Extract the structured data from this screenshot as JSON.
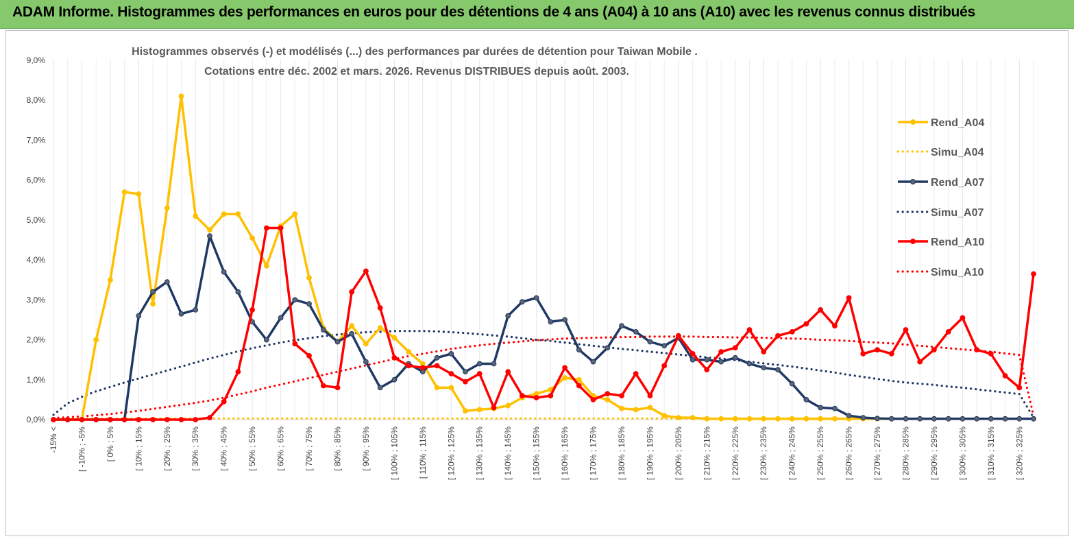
{
  "header": {
    "title": "ADAM Informe. Histogrammes des performances en euros pour des détentions de 4 ans (A04) à 10 ans (A10) avec les revenus connus distribués"
  },
  "chart_data": {
    "type": "line",
    "title_line1": "Histogrammes observés (-) et modélisés (...) des performances par durées de détention pour Taiwan Mobile .",
    "title_line2": "Cotations entre déc. 2002 et mars. 2026. Revenus DISTRIBUES depuis août. 2003.",
    "ylim": [
      0,
      9
    ],
    "yticks": [
      "0,0%",
      "1,0%",
      "2,0%",
      "3,0%",
      "4,0%",
      "5,0%",
      "6,0%",
      "7,0%",
      "8,0%",
      "9,0%"
    ],
    "legend_position": "right",
    "x_labels": [
      "-15% <",
      "[ -10% ; -5%",
      "[ 0% ; 5%",
      "[ 10% ; 15%",
      "[ 20% ; 25%",
      "[ 30% ; 35%",
      "[ 40% ; 45%",
      "[ 50% ; 55%",
      "[ 60% ; 65%",
      "[ 70% ; 75%",
      "[ 80% ; 85%",
      "[ 90% ; 95%",
      "[ 100% ; 105%",
      "[ 110% ; 115%",
      "[ 120% ; 125%",
      "[ 130% ; 135%",
      "[ 140% ; 145%",
      "[ 150% ; 155%",
      "[ 160% ; 165%",
      "[ 170% ; 175%",
      "[ 180% ; 185%",
      "[ 190% ; 195%",
      "[ 200% ; 205%",
      "[ 210% ; 215%",
      "[ 220% ; 225%",
      "[ 230% ; 235%",
      "[ 240% ; 245%",
      "[ 250% ; 255%",
      "[ 260% ; 265%",
      "[ 270% ; 275%",
      "[ 280% ; 285%",
      "[ 290% ; 295%",
      "[ 300% ; 305%",
      "[ 310% ; 315%",
      "[ 320% ; 325%"
    ],
    "series": [
      {
        "name": "Rend_A04",
        "style": "solid",
        "color": "#ffc000",
        "values": [
          0,
          0,
          0,
          2,
          3.5,
          5.7,
          5.65,
          2.9,
          5.3,
          8.1,
          5.1,
          4.75,
          5.15,
          5.15,
          4.55,
          3.85,
          4.85,
          5.15,
          3.55,
          2.3,
          1.95,
          2.35,
          1.9,
          2.3,
          2.05,
          1.7,
          1.4,
          0.8,
          0.8,
          0.22,
          0.25,
          0.28,
          0.35,
          0.55,
          0.65,
          0.75,
          1.05,
          1.0,
          0.6,
          0.5,
          0.28,
          0.25,
          0.3,
          0.1,
          0.05,
          0.05,
          0.02,
          0.02,
          0.02,
          0.02,
          0.02,
          0.02,
          0.02,
          0.02,
          0.02,
          0.02,
          0.02,
          0.02,
          0.02,
          0.02,
          0.02,
          0.02,
          0.02,
          0.02,
          0.02,
          0.02,
          0.02,
          0.02,
          0.02,
          0.02
        ]
      },
      {
        "name": "Simu_A04",
        "style": "dotted",
        "color": "#ffc000",
        "values": [
          0.03,
          0.03,
          0.03,
          0.03,
          0.03,
          0.03,
          0.03,
          0.03,
          0.03,
          0.03,
          0.03,
          0.03,
          0.03,
          0.03,
          0.03,
          0.03,
          0.03,
          0.03,
          0.03,
          0.03,
          0.03,
          0.03,
          0.03,
          0.03,
          0.03,
          0.03,
          0.03,
          0.03,
          0.03,
          0.03,
          0.03,
          0.03,
          0.03,
          0.03,
          0.03,
          0.03,
          0.03,
          0.03,
          0.03,
          0.03,
          0.03,
          0.03,
          0.03,
          0.03,
          0.03,
          0.03,
          0.03,
          0.03,
          0.03,
          0.03,
          0.03,
          0.03,
          0.03,
          0.03,
          0.03,
          0.03,
          0.03,
          0.03,
          0.03,
          0.03,
          0.03,
          0.03,
          0.03,
          0.03,
          0.03,
          0.03,
          0.03,
          0.03,
          0.03,
          0.03
        ]
      },
      {
        "name": "Rend_A07",
        "style": "solid",
        "color": "#1f3864",
        "values": [
          0,
          0,
          0,
          0,
          0,
          0,
          2.6,
          3.2,
          3.45,
          2.65,
          2.75,
          4.6,
          3.7,
          3.2,
          2.45,
          2.0,
          2.55,
          3.0,
          2.9,
          2.25,
          1.95,
          2.15,
          1.45,
          0.8,
          1.0,
          1.4,
          1.2,
          1.55,
          1.65,
          1.2,
          1.4,
          1.4,
          2.6,
          2.95,
          3.05,
          2.45,
          2.5,
          1.75,
          1.45,
          1.8,
          2.35,
          2.2,
          1.95,
          1.85,
          2.05,
          1.5,
          1.5,
          1.45,
          1.55,
          1.4,
          1.3,
          1.25,
          0.9,
          0.5,
          0.3,
          0.28,
          0.1,
          0.05,
          0.03,
          0.02,
          0.02,
          0.02,
          0.02,
          0.02,
          0.02,
          0.02,
          0.02,
          0.02,
          0.02,
          0.02
        ]
      },
      {
        "name": "Simu_A07",
        "style": "dotted",
        "color": "#1f3864",
        "values": [
          0.12,
          0.41,
          0.57,
          0.71,
          0.82,
          0.93,
          1.03,
          1.13,
          1.23,
          1.33,
          1.43,
          1.53,
          1.62,
          1.71,
          1.79,
          1.86,
          1.93,
          1.99,
          2.04,
          2.09,
          2.13,
          2.16,
          2.19,
          2.2,
          2.22,
          2.22,
          2.22,
          2.21,
          2.19,
          2.17,
          2.14,
          2.11,
          2.08,
          2.04,
          2.0,
          1.97,
          1.93,
          1.89,
          1.85,
          1.81,
          1.77,
          1.74,
          1.7,
          1.67,
          1.63,
          1.6,
          1.56,
          1.53,
          1.49,
          1.45,
          1.41,
          1.37,
          1.33,
          1.28,
          1.23,
          1.18,
          1.12,
          1.07,
          1.02,
          0.97,
          0.93,
          0.9,
          0.87,
          0.83,
          0.8,
          0.76,
          0.72,
          0.68,
          0.64,
          0.05
        ]
      },
      {
        "name": "Rend_A10",
        "style": "solid",
        "color": "#ff0000",
        "values": [
          0,
          0,
          0,
          0,
          0,
          0,
          0,
          0,
          0,
          0,
          0,
          0.05,
          0.45,
          1.2,
          2.75,
          4.8,
          4.8,
          1.9,
          1.6,
          0.85,
          0.8,
          3.2,
          3.72,
          2.8,
          1.55,
          1.35,
          1.3,
          1.35,
          1.15,
          0.95,
          1.15,
          0.3,
          1.2,
          0.6,
          0.55,
          0.6,
          1.3,
          0.85,
          0.5,
          0.65,
          0.6,
          1.15,
          0.6,
          1.35,
          2.1,
          1.65,
          1.25,
          1.7,
          1.8,
          2.25,
          1.7,
          2.1,
          2.2,
          2.4,
          2.75,
          2.35,
          3.05,
          1.65,
          1.75,
          1.65,
          2.25,
          1.45,
          1.75,
          2.2,
          2.55,
          1.75,
          1.65,
          1.1,
          0.8,
          3.65
        ]
      },
      {
        "name": "Simu_A10",
        "style": "dotted",
        "color": "#ff0000",
        "values": [
          0.04,
          0.06,
          0.08,
          0.11,
          0.14,
          0.18,
          0.22,
          0.27,
          0.32,
          0.37,
          0.42,
          0.48,
          0.55,
          0.63,
          0.71,
          0.8,
          0.88,
          0.96,
          1.04,
          1.12,
          1.2,
          1.28,
          1.36,
          1.44,
          1.52,
          1.59,
          1.65,
          1.71,
          1.77,
          1.82,
          1.86,
          1.9,
          1.93,
          1.96,
          1.99,
          2.01,
          2.03,
          2.04,
          2.05,
          2.06,
          2.07,
          2.07,
          2.08,
          2.08,
          2.08,
          2.08,
          2.07,
          2.07,
          2.06,
          2.06,
          2.05,
          2.04,
          2.03,
          2.02,
          2.0,
          1.99,
          1.97,
          1.95,
          1.93,
          1.91,
          1.88,
          1.85,
          1.82,
          1.79,
          1.76,
          1.73,
          1.7,
          1.66,
          1.62,
          0.1
        ]
      }
    ]
  }
}
